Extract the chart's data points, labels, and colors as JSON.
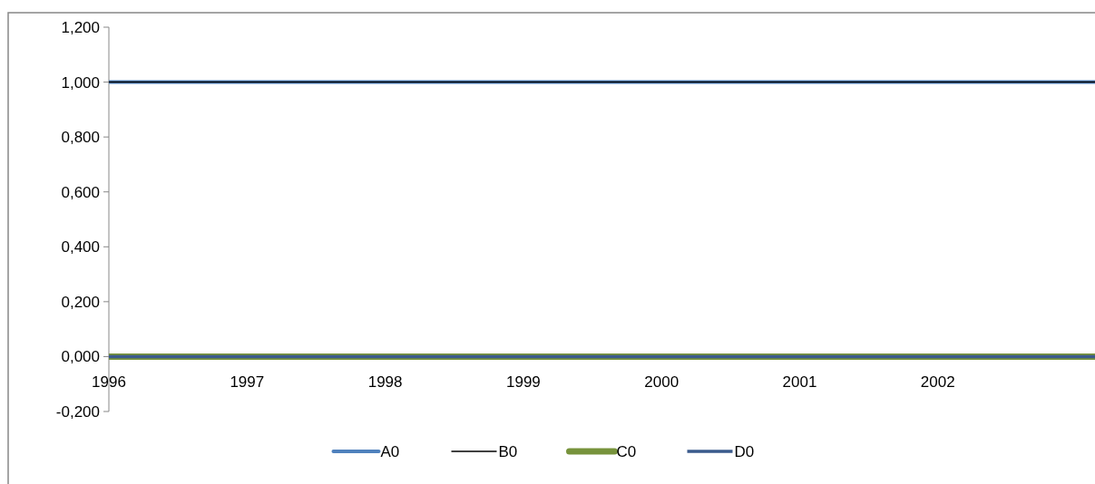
{
  "chart_data": {
    "type": "line",
    "x": [
      1996,
      2003.4
    ],
    "series": [
      {
        "name": "A0",
        "color": "#4f81bd",
        "values": [
          1,
          1
        ]
      },
      {
        "name": "B0",
        "color": "#000000",
        "values": [
          1,
          1
        ]
      },
      {
        "name": "C0",
        "color": "#77933c",
        "values": [
          0,
          0
        ]
      },
      {
        "name": "D0",
        "color": "#3a5a8c",
        "values": [
          0,
          0
        ]
      }
    ],
    "xlim": [
      1996,
      2003.4
    ],
    "xticks": [
      1996,
      1997,
      1998,
      1999,
      2000,
      2001,
      2002
    ],
    "ylim": [
      -0.2,
      1.2
    ],
    "yticks": [
      {
        "value": -0.2,
        "label": "-0,200"
      },
      {
        "value": 0,
        "label": "0,000"
      },
      {
        "value": 0.2,
        "label": "0,200"
      },
      {
        "value": 0.4,
        "label": "0,400"
      },
      {
        "value": 0.6,
        "label": "0,600"
      },
      {
        "value": 0.8,
        "label": "0,800"
      },
      {
        "value": 1,
        "label": "1,000"
      },
      {
        "value": 1.2,
        "label": "1,200"
      }
    ],
    "grid": false,
    "legend": "bottom",
    "marker": "none",
    "line_style": "solid"
  }
}
